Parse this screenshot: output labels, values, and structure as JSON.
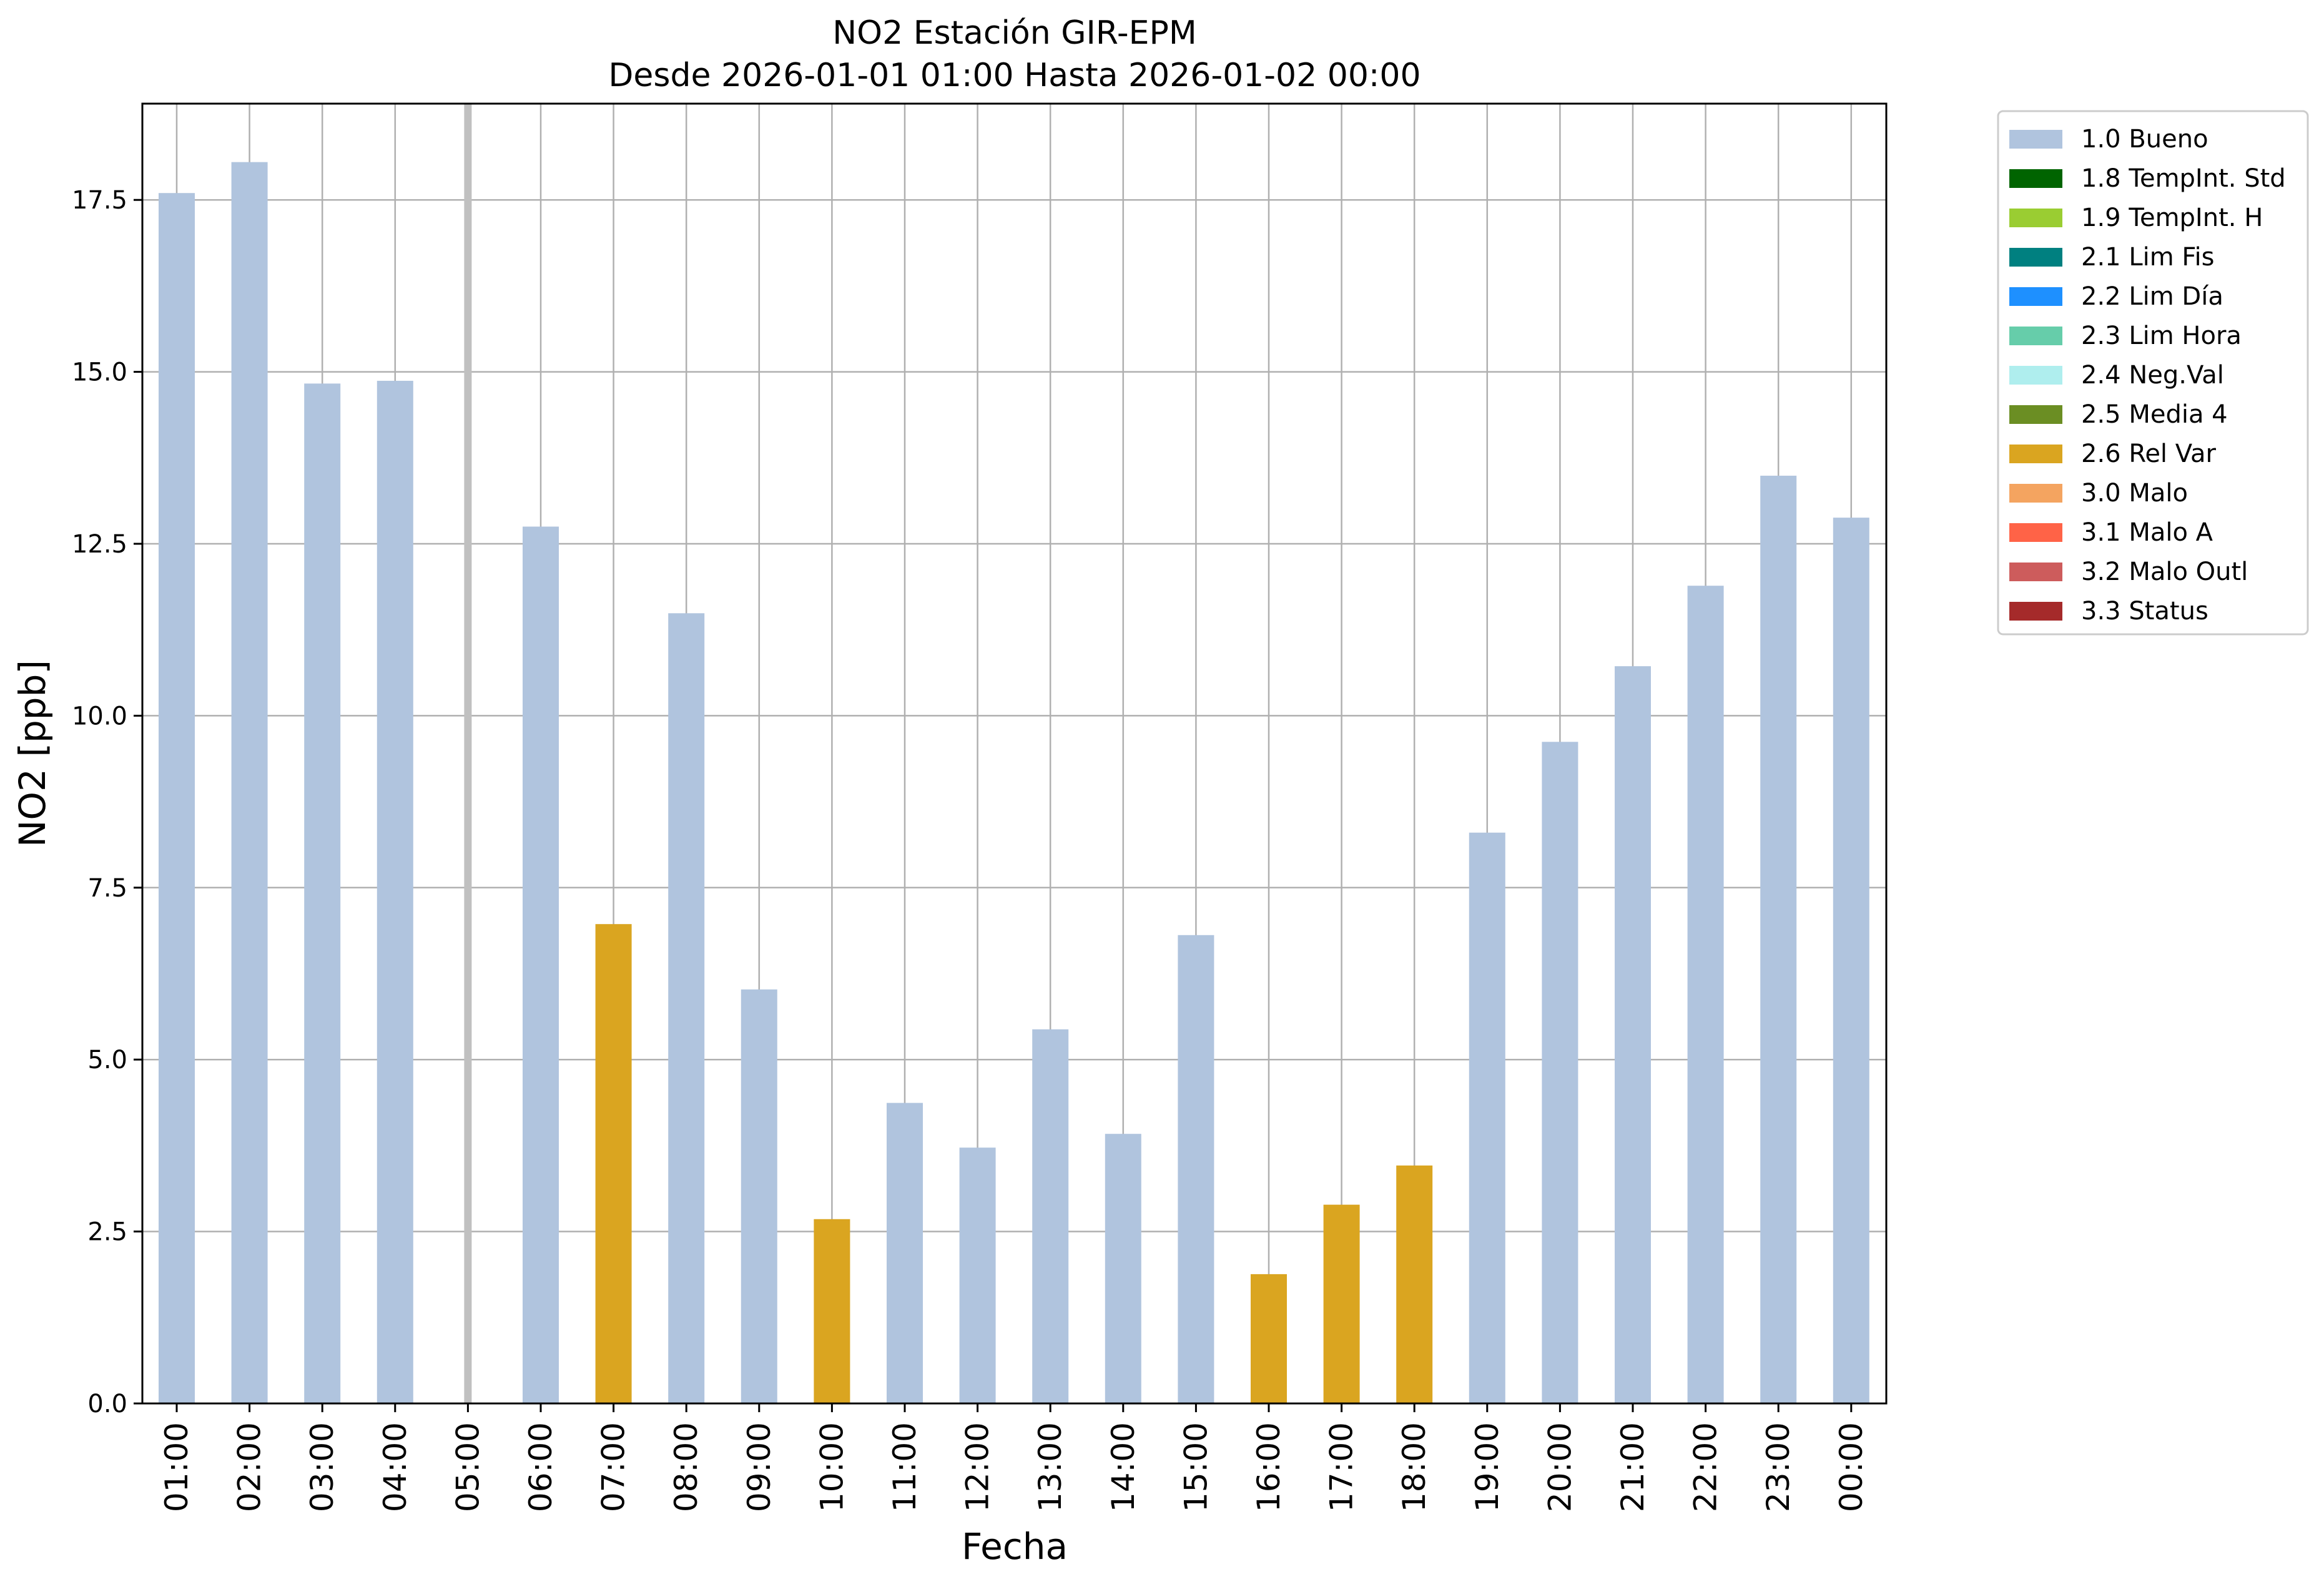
{
  "chart_data": {
    "type": "bar",
    "title": "NO2 Estación GIR-EPM",
    "subtitle": "Desde 2026-01-01 01:00 Hasta 2026-01-02 00:00",
    "xlabel": "Fecha",
    "ylabel": "NO2 [ppb]",
    "ylim": [
      0,
      18.9
    ],
    "yticks": [
      "0.0",
      "2.5",
      "5.0",
      "7.5",
      "10.0",
      "12.5",
      "15.0",
      "17.5"
    ],
    "grid": true,
    "legend_position": "outside-right-top",
    "categories": [
      "01:00",
      "02:00",
      "03:00",
      "04:00",
      "05:00",
      "06:00",
      "07:00",
      "08:00",
      "09:00",
      "10:00",
      "11:00",
      "12:00",
      "13:00",
      "14:00",
      "15:00",
      "16:00",
      "17:00",
      "18:00",
      "19:00",
      "20:00",
      "21:00",
      "22:00",
      "23:00",
      "00:00"
    ],
    "values": [
      17.6,
      18.05,
      14.83,
      14.87,
      null,
      12.75,
      6.97,
      11.49,
      6.02,
      2.68,
      4.37,
      3.72,
      5.44,
      3.92,
      6.81,
      1.88,
      2.89,
      3.46,
      8.3,
      9.62,
      10.72,
      11.89,
      13.49,
      12.88
    ],
    "quality_flags": [
      "1.0 Bueno",
      "1.0 Bueno",
      "1.0 Bueno",
      "1.0 Bueno",
      null,
      "1.0 Bueno",
      "2.6 Rel Var",
      "1.0 Bueno",
      "1.0 Bueno",
      "2.6 Rel Var",
      "1.0 Bueno",
      "1.0 Bueno",
      "1.0 Bueno",
      "1.0 Bueno",
      "1.0 Bueno",
      "2.6 Rel Var",
      "2.6 Rel Var",
      "2.6 Rel Var",
      "1.0 Bueno",
      "1.0 Bueno",
      "1.0 Bueno",
      "1.0 Bueno",
      "1.0 Bueno",
      "1.0 Bueno"
    ],
    "missing_marker": {
      "category": "05:00",
      "color": "#c0c0c0"
    },
    "legend": [
      {
        "label": "1.0 Bueno",
        "color": "#b0c4de"
      },
      {
        "label": "1.8 TempInt. Std",
        "color": "#006400"
      },
      {
        "label": "1.9 TempInt. H",
        "color": "#9acd32"
      },
      {
        "label": "2.1 Lim Fis",
        "color": "#008080"
      },
      {
        "label": "2.2 Lim Día",
        "color": "#1e90ff"
      },
      {
        "label": "2.3 Lim Hora",
        "color": "#66cdaa"
      },
      {
        "label": "2.4 Neg.Val",
        "color": "#afeeee"
      },
      {
        "label": "2.5 Media 4",
        "color": "#6b8e23"
      },
      {
        "label": "2.6 Rel Var",
        "color": "#daa520"
      },
      {
        "label": "3.0 Malo",
        "color": "#f4a460"
      },
      {
        "label": "3.1 Malo A",
        "color": "#ff6347"
      },
      {
        "label": "3.2 Malo Outl",
        "color": "#cd5c5c"
      },
      {
        "label": "3.3 Status",
        "color": "#a52a2a"
      }
    ]
  }
}
